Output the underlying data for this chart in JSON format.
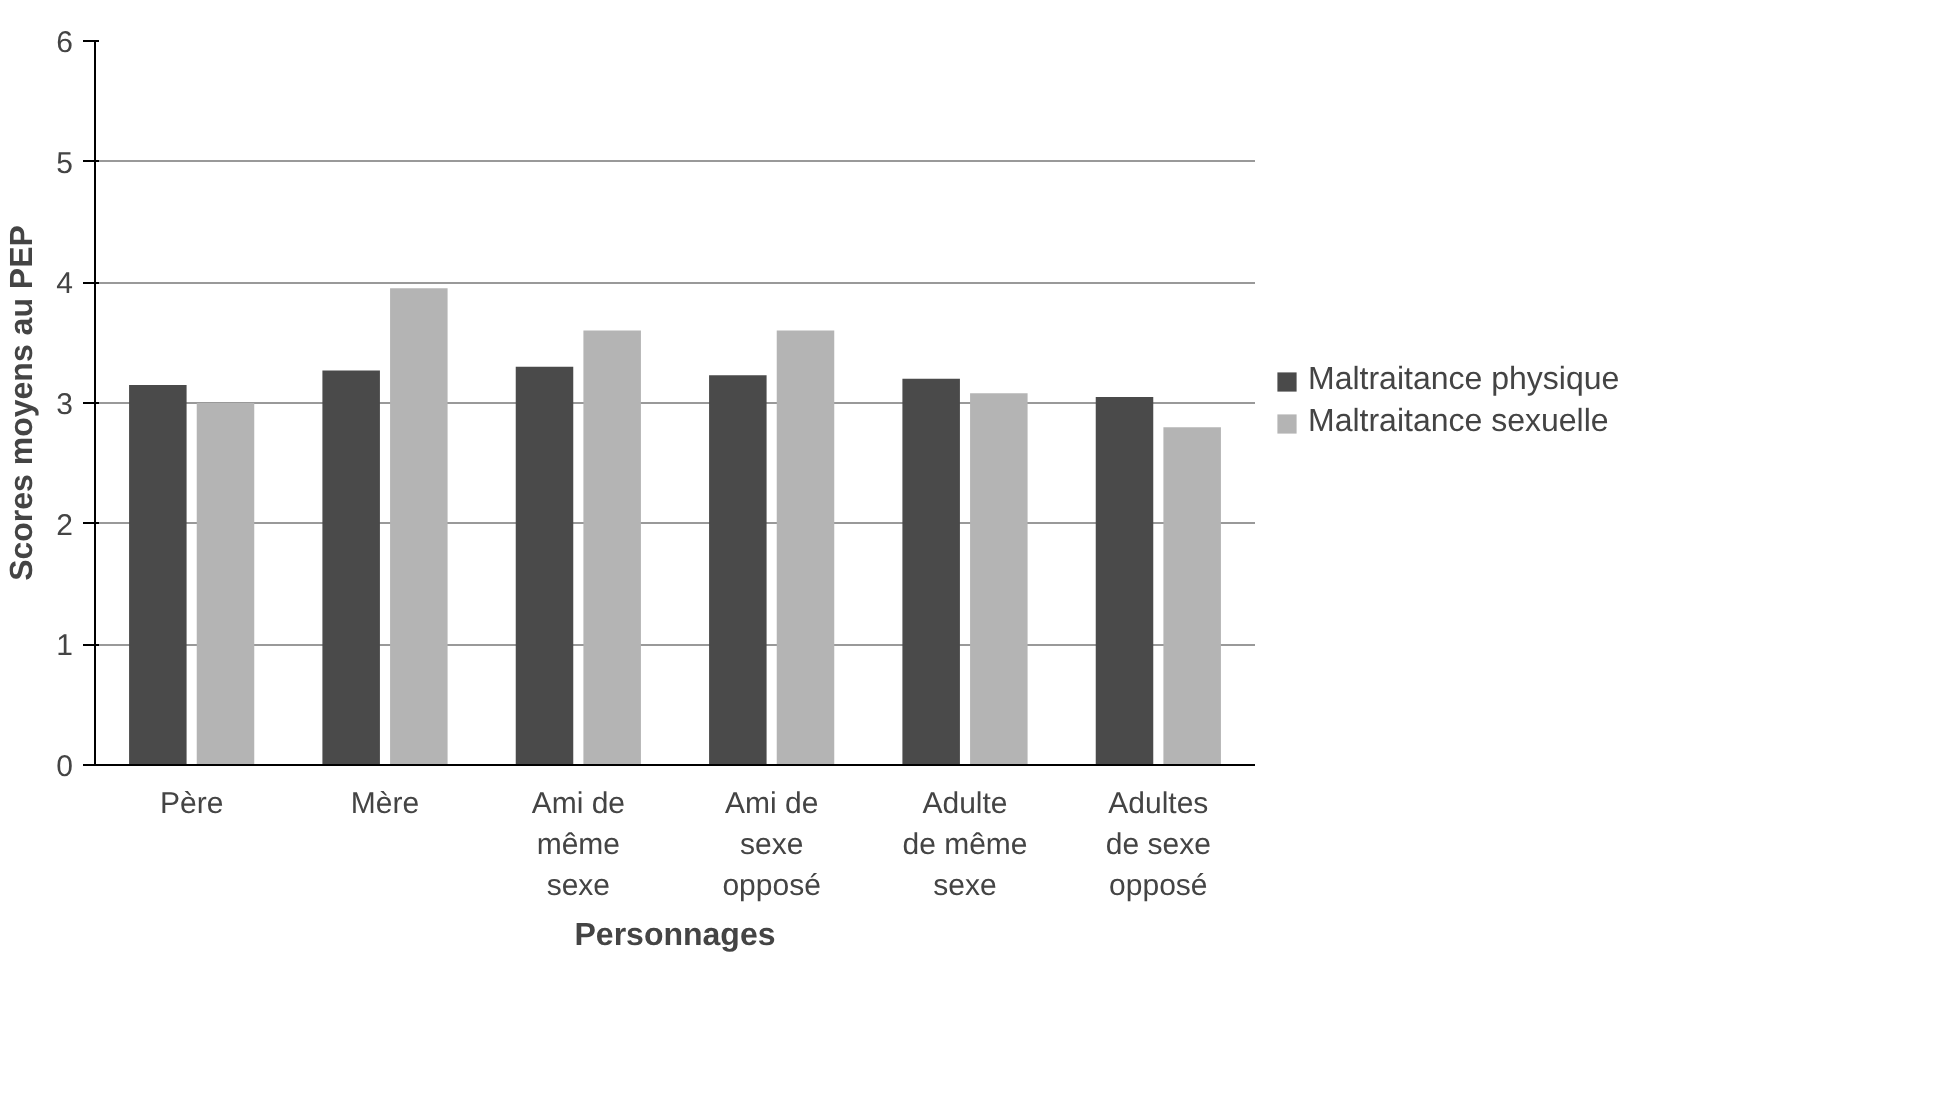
{
  "chart_data": {
    "type": "bar",
    "xlabel": "Personnages",
    "ylabel": "Scores moyens au PEP",
    "categories": [
      "Père",
      "Mère",
      "Ami de même sexe",
      "Ami de sexe opposé",
      "Adulte de même sexe",
      "Adultes de sexe opposé"
    ],
    "series": [
      {
        "name": "Maltraitance physique",
        "color": "#4a4a4a",
        "values": [
          3.15,
          3.27,
          3.3,
          3.23,
          3.2,
          3.05
        ]
      },
      {
        "name": "Maltraitance sexuelle",
        "color": "#b4b4b4",
        "values": [
          3.0,
          3.95,
          3.6,
          3.6,
          3.08,
          2.8
        ]
      }
    ],
    "ylim": [
      0,
      6
    ],
    "yticks": [
      0,
      1,
      2,
      3,
      4,
      5,
      6
    ],
    "grid": "y",
    "legend": "right"
  }
}
